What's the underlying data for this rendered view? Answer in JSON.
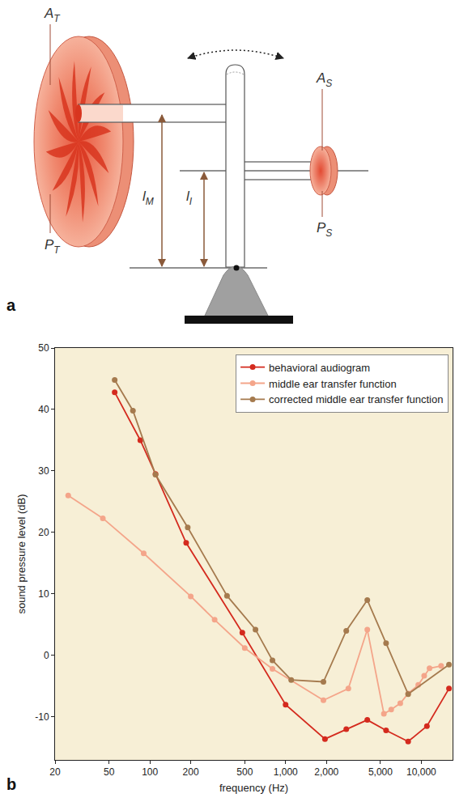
{
  "panels": [
    "a",
    "b"
  ],
  "diagram": {
    "labels": {
      "tympanum_area": {
        "text": "A",
        "sub": "T"
      },
      "tympanum_pressure": {
        "text": "P",
        "sub": "T"
      },
      "malleus_arm": {
        "text": "l",
        "sub": "M"
      },
      "incus_arm": {
        "text": "l",
        "sub": "I"
      },
      "stapes_area": {
        "text": "A",
        "sub": "S"
      },
      "stapes_pressure": {
        "text": "P",
        "sub": "S"
      }
    }
  },
  "chart_data": {
    "type": "line",
    "marker": "circle",
    "x_label": "frequency (Hz)",
    "y_label": "sound pressure level (dB)",
    "log": "x",
    "grid": false,
    "legend": "upper right",
    "xlim": [
      20,
      17000
    ],
    "xticks": [
      20,
      50,
      100,
      200,
      500,
      {
        "value": 1000,
        "label": "1,000"
      },
      {
        "value": 2000,
        "label": "2,000"
      },
      {
        "value": 5000,
        "label": "5,000"
      },
      {
        "value": 10000,
        "label": "10,000"
      }
    ],
    "ylim": [
      -17,
      50
    ],
    "yticks": [
      -10,
      0,
      10,
      20,
      30,
      40,
      50
    ],
    "series": [
      {
        "name": "behavioral audiogram",
        "color": "#d42a1e",
        "x": [
          55,
          85,
          110,
          185,
          480,
          1000,
          1950,
          2800,
          4000,
          5500,
          8000,
          11000,
          16000
        ],
        "values": [
          42.8,
          35,
          29.5,
          18.3,
          3.7,
          -8,
          -13.6,
          -12,
          -10.5,
          -12.2,
          -14,
          -11.5,
          -5.4
        ]
      },
      {
        "name": "middle ear transfer function",
        "color": "#f4a58a",
        "x": [
          25,
          45,
          90,
          200,
          300,
          500,
          800,
          1900,
          2900,
          4000,
          5300,
          6000,
          7000,
          8000,
          9500,
          10500,
          11500,
          14000
        ],
        "values": [
          26,
          22.3,
          16.6,
          9.6,
          5.8,
          1.2,
          -2.2,
          -7.3,
          -5.4,
          4.2,
          -9.5,
          -8.8,
          -7.8,
          -6.2,
          -4.8,
          -3.3,
          -2.1,
          -1.7
        ]
      },
      {
        "name": "corrected middle ear transfer function",
        "color": "#a57a4e",
        "x": [
          55,
          75,
          110,
          190,
          370,
          600,
          800,
          1100,
          1900,
          2800,
          4000,
          5500,
          8000,
          16000
        ],
        "values": [
          44.8,
          39.8,
          29.4,
          20.8,
          9.7,
          4.2,
          -0.8,
          -4,
          -4.3,
          4,
          9,
          2,
          -6.3,
          -1.5
        ]
      }
    ]
  }
}
